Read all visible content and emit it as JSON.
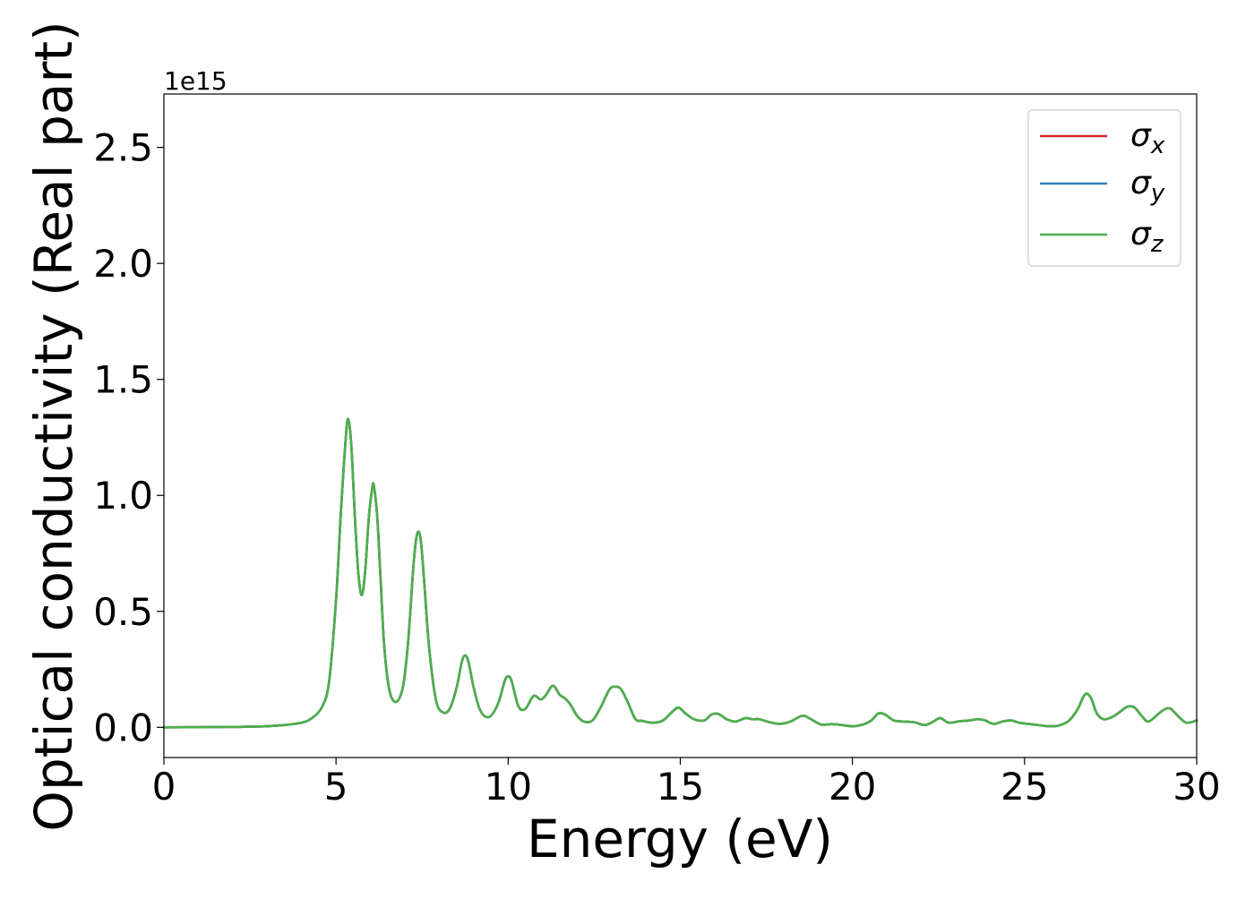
{
  "chart_data": {
    "type": "line",
    "title": "",
    "xlabel": "Energy (eV)",
    "ylabel": "Optical conductivity (Real part)",
    "offset_text": "1e15",
    "xlim": [
      0,
      30
    ],
    "ylim": [
      -0.13,
      2.73
    ],
    "x_ticks": [
      0,
      5,
      10,
      15,
      20,
      25,
      30
    ],
    "x_tick_labels": [
      "0",
      "5",
      "10",
      "15",
      "20",
      "25",
      "30"
    ],
    "y_ticks": [
      0.0,
      0.5,
      1.0,
      1.5,
      2.0,
      2.5
    ],
    "y_tick_labels": [
      "0.0",
      "0.5",
      "1.0",
      "1.5",
      "2.0",
      "2.5"
    ],
    "grid": false,
    "legend_position": "top-right",
    "x": [
      0,
      1,
      2,
      3,
      3.5,
      4,
      4.3,
      4.6,
      4.8,
      5.0,
      5.15,
      5.3,
      5.37,
      5.45,
      5.55,
      5.65,
      5.75,
      5.85,
      5.95,
      6.05,
      6.1,
      6.2,
      6.3,
      6.4,
      6.55,
      6.75,
      6.95,
      7.1,
      7.25,
      7.35,
      7.45,
      7.55,
      7.7,
      7.9,
      8.1,
      8.3,
      8.5,
      8.65,
      8.75,
      8.85,
      9.0,
      9.2,
      9.45,
      9.7,
      9.9,
      10.0,
      10.1,
      10.3,
      10.5,
      10.7,
      10.8,
      10.95,
      11.1,
      11.25,
      11.35,
      11.5,
      11.65,
      11.8,
      12.0,
      12.2,
      12.45,
      12.7,
      12.95,
      13.15,
      13.3,
      13.5,
      13.7,
      13.9,
      14.2,
      14.5,
      14.75,
      14.95,
      15.15,
      15.4,
      15.7,
      15.9,
      16.1,
      16.35,
      16.6,
      16.9,
      17.1,
      17.3,
      17.6,
      17.9,
      18.2,
      18.45,
      18.6,
      18.8,
      19.1,
      19.4,
      19.7,
      20.0,
      20.3,
      20.55,
      20.75,
      20.95,
      21.2,
      21.5,
      21.8,
      22.1,
      22.35,
      22.55,
      22.8,
      23.1,
      23.4,
      23.65,
      23.85,
      24.1,
      24.35,
      24.6,
      24.85,
      25.1,
      25.4,
      25.7,
      26.0,
      26.3,
      26.55,
      26.7,
      26.82,
      26.95,
      27.1,
      27.3,
      27.55,
      27.8,
      28.0,
      28.2,
      28.4,
      28.6,
      28.9,
      29.1,
      29.25,
      29.45,
      29.7,
      30.0
    ],
    "series": [
      {
        "name": "σx",
        "color": "#d62728",
        "values": [
          0,
          0.001,
          0.002,
          0.005,
          0.01,
          0.02,
          0.04,
          0.09,
          0.2,
          0.55,
          0.95,
          1.28,
          1.32,
          1.2,
          0.9,
          0.66,
          0.57,
          0.68,
          0.9,
          1.03,
          1.04,
          0.9,
          0.62,
          0.35,
          0.16,
          0.11,
          0.18,
          0.38,
          0.7,
          0.83,
          0.82,
          0.65,
          0.35,
          0.12,
          0.065,
          0.08,
          0.17,
          0.28,
          0.31,
          0.28,
          0.17,
          0.07,
          0.045,
          0.1,
          0.2,
          0.22,
          0.2,
          0.09,
          0.08,
          0.13,
          0.135,
          0.12,
          0.14,
          0.175,
          0.175,
          0.14,
          0.125,
          0.1,
          0.05,
          0.025,
          0.03,
          0.09,
          0.165,
          0.175,
          0.16,
          0.1,
          0.035,
          0.028,
          0.02,
          0.03,
          0.065,
          0.085,
          0.06,
          0.035,
          0.03,
          0.055,
          0.058,
          0.035,
          0.025,
          0.04,
          0.035,
          0.035,
          0.022,
          0.015,
          0.025,
          0.045,
          0.05,
          0.035,
          0.012,
          0.014,
          0.01,
          0.005,
          0.012,
          0.03,
          0.06,
          0.055,
          0.03,
          0.025,
          0.022,
          0.01,
          0.025,
          0.04,
          0.02,
          0.026,
          0.03,
          0.035,
          0.03,
          0.015,
          0.025,
          0.03,
          0.02,
          0.015,
          0.01,
          0.005,
          0.008,
          0.03,
          0.08,
          0.13,
          0.145,
          0.12,
          0.06,
          0.035,
          0.045,
          0.07,
          0.09,
          0.085,
          0.05,
          0.025,
          0.06,
          0.08,
          0.08,
          0.05,
          0.02,
          0.03
        ]
      },
      {
        "name": "σy",
        "color": "#377eb8",
        "values": [
          0,
          0.001,
          0.002,
          0.005,
          0.01,
          0.02,
          0.04,
          0.09,
          0.2,
          0.55,
          0.95,
          1.28,
          1.32,
          1.2,
          0.9,
          0.66,
          0.57,
          0.68,
          0.9,
          1.03,
          1.04,
          0.9,
          0.62,
          0.35,
          0.16,
          0.11,
          0.18,
          0.38,
          0.7,
          0.83,
          0.82,
          0.65,
          0.35,
          0.12,
          0.065,
          0.08,
          0.17,
          0.28,
          0.31,
          0.28,
          0.17,
          0.07,
          0.045,
          0.1,
          0.2,
          0.22,
          0.2,
          0.09,
          0.08,
          0.13,
          0.135,
          0.12,
          0.14,
          0.175,
          0.175,
          0.14,
          0.125,
          0.1,
          0.05,
          0.025,
          0.03,
          0.09,
          0.165,
          0.175,
          0.16,
          0.1,
          0.035,
          0.028,
          0.02,
          0.03,
          0.065,
          0.085,
          0.06,
          0.035,
          0.03,
          0.055,
          0.058,
          0.035,
          0.025,
          0.04,
          0.035,
          0.035,
          0.022,
          0.015,
          0.025,
          0.045,
          0.05,
          0.035,
          0.012,
          0.014,
          0.01,
          0.005,
          0.012,
          0.03,
          0.06,
          0.055,
          0.03,
          0.025,
          0.022,
          0.01,
          0.025,
          0.04,
          0.02,
          0.026,
          0.03,
          0.035,
          0.03,
          0.015,
          0.025,
          0.03,
          0.02,
          0.015,
          0.01,
          0.005,
          0.008,
          0.03,
          0.08,
          0.13,
          0.145,
          0.12,
          0.06,
          0.035,
          0.045,
          0.07,
          0.09,
          0.085,
          0.05,
          0.025,
          0.06,
          0.08,
          0.08,
          0.05,
          0.02,
          0.03
        ]
      },
      {
        "name": "σz",
        "color": "#4daf4a",
        "values": [
          0,
          0.001,
          0.002,
          0.005,
          0.01,
          0.02,
          0.04,
          0.09,
          0.2,
          0.55,
          0.95,
          1.28,
          1.32,
          1.2,
          0.9,
          0.66,
          0.57,
          0.68,
          0.9,
          1.03,
          1.04,
          0.9,
          0.62,
          0.35,
          0.16,
          0.11,
          0.18,
          0.38,
          0.7,
          0.83,
          0.82,
          0.65,
          0.35,
          0.12,
          0.065,
          0.08,
          0.17,
          0.28,
          0.31,
          0.28,
          0.17,
          0.07,
          0.045,
          0.1,
          0.2,
          0.22,
          0.2,
          0.09,
          0.08,
          0.13,
          0.135,
          0.12,
          0.14,
          0.175,
          0.175,
          0.14,
          0.125,
          0.1,
          0.05,
          0.025,
          0.03,
          0.09,
          0.165,
          0.175,
          0.16,
          0.1,
          0.035,
          0.028,
          0.02,
          0.03,
          0.065,
          0.085,
          0.06,
          0.035,
          0.03,
          0.055,
          0.058,
          0.035,
          0.025,
          0.04,
          0.035,
          0.035,
          0.022,
          0.015,
          0.025,
          0.045,
          0.05,
          0.035,
          0.012,
          0.014,
          0.01,
          0.005,
          0.012,
          0.03,
          0.06,
          0.055,
          0.03,
          0.025,
          0.022,
          0.01,
          0.025,
          0.04,
          0.02,
          0.026,
          0.03,
          0.035,
          0.03,
          0.015,
          0.025,
          0.03,
          0.02,
          0.015,
          0.01,
          0.005,
          0.008,
          0.03,
          0.08,
          0.13,
          0.145,
          0.12,
          0.06,
          0.035,
          0.045,
          0.07,
          0.09,
          0.085,
          0.05,
          0.025,
          0.06,
          0.08,
          0.08,
          0.05,
          0.02,
          0.03
        ]
      }
    ],
    "legend": [
      {
        "symbol": "σ",
        "subscript": "x",
        "color": "#d62728"
      },
      {
        "symbol": "σ",
        "subscript": "y",
        "color": "#377eb8"
      },
      {
        "symbol": "σ",
        "subscript": "z",
        "color": "#4daf4a"
      }
    ]
  }
}
